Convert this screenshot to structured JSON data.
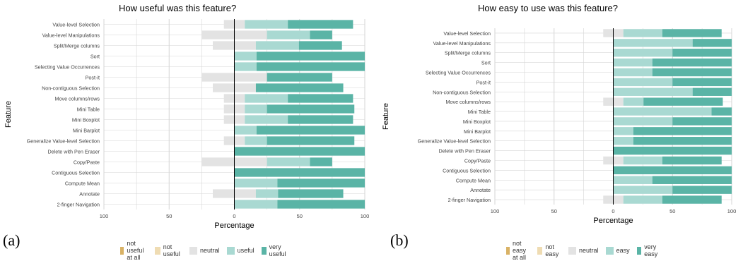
{
  "panels": [
    {
      "id": "a",
      "label": "(a)",
      "legend": [
        "not useful at all",
        "not useful",
        "neutral",
        "useful",
        "very useful"
      ]
    },
    {
      "id": "b",
      "label": "(b)",
      "legend": [
        "not easy at all",
        "not easy",
        "neutral",
        "easy",
        "very easy"
      ]
    }
  ],
  "colors": {
    "level1": "#d9b265",
    "level2": "#efdcb3",
    "neutral": "#e3e3e3",
    "level4": "#a9d9d2",
    "level5": "#5ab4a6",
    "grid": "#d6d6d6",
    "zero": "#000000"
  },
  "chart_data": [
    {
      "type": "bar",
      "subtype": "diverging-stacked",
      "title": "How useful was this feature?",
      "xlabel": "Percentage",
      "ylabel": "Feature",
      "xlim": [
        -100,
        100
      ],
      "xticks": [
        "100",
        "50",
        "0",
        "50",
        "100"
      ],
      "categories": [
        "Value-level Selection",
        "Value-level Manipulations",
        "Split/Merge columns",
        "Sort",
        "Selecting Value Occurrences",
        "Post-it",
        "Non-contiguous Selection",
        "Move columns/rows",
        "Mini Table",
        "Mini Boxplot",
        "Mini Barplot",
        "Generalize Value-level Selection",
        "Delete with Pen Eraser",
        "Copy/Paste",
        "Contiguous Selection",
        "Compute Mean",
        "Annotate",
        "2-finger Navigation"
      ],
      "series": [
        {
          "name": "not useful at all",
          "values": [
            0,
            0,
            0,
            0,
            0,
            0,
            0,
            0,
            0,
            0,
            0,
            0,
            0,
            0,
            0,
            0,
            0,
            0
          ]
        },
        {
          "name": "not useful",
          "values": [
            0,
            0,
            0,
            0,
            0,
            0,
            0,
            0,
            0,
            0,
            0,
            0,
            0,
            0,
            0,
            0,
            0,
            0
          ]
        },
        {
          "name": "neutral",
          "values": [
            16,
            50,
            33,
            0,
            0,
            50,
            33,
            16,
            16,
            16,
            0,
            16,
            0,
            50,
            0,
            0,
            33,
            0
          ]
        },
        {
          "name": "useful",
          "values": [
            33,
            33,
            33,
            17,
            17,
            0,
            0,
            33,
            17,
            33,
            17,
            17,
            0,
            33,
            0,
            33,
            17,
            33
          ]
        },
        {
          "name": "very useful",
          "values": [
            50,
            17,
            33,
            83,
            83,
            50,
            67,
            50,
            67,
            50,
            83,
            67,
            100,
            17,
            100,
            67,
            50,
            67
          ]
        }
      ],
      "legend_position": "bottom"
    },
    {
      "type": "bar",
      "subtype": "diverging-stacked",
      "title": "How easy to use was this feature?",
      "xlabel": "Percentage",
      "ylabel": "Feature",
      "xlim": [
        -100,
        100
      ],
      "xticks": [
        "100",
        "50",
        "0",
        "50",
        "100"
      ],
      "categories": [
        "Value-level Selection",
        "Value-level Manipulations",
        "Split/Merge columns",
        "Sort",
        "Selecting Value Occurrences",
        "Post-it",
        "Non-contiguous Selection",
        "Move columns/rows",
        "Mini Table",
        "Mini Boxplot",
        "Mini Barplot",
        "Generalize Value-level Selection",
        "Delete with Pen Eraser",
        "Copy/Paste",
        "Contiguous Selection",
        "Compute Mean",
        "Annotate",
        "2-finger Navigation"
      ],
      "series": [
        {
          "name": "not easy at all",
          "values": [
            0,
            0,
            0,
            0,
            0,
            0,
            0,
            0,
            0,
            0,
            0,
            0,
            0,
            0,
            0,
            0,
            0,
            0
          ]
        },
        {
          "name": "not easy",
          "values": [
            0,
            0,
            0,
            0,
            0,
            0,
            0,
            0,
            0,
            0,
            0,
            0,
            0,
            0,
            0,
            0,
            0,
            0
          ]
        },
        {
          "name": "neutral",
          "values": [
            17,
            0,
            0,
            0,
            0,
            0,
            0,
            17,
            0,
            0,
            0,
            0,
            0,
            17,
            0,
            0,
            0,
            17
          ]
        },
        {
          "name": "easy",
          "values": [
            33,
            67,
            50,
            33,
            33,
            50,
            67,
            17,
            83,
            50,
            17,
            17,
            0,
            33,
            0,
            33,
            50,
            33
          ]
        },
        {
          "name": "very easy",
          "values": [
            50,
            33,
            50,
            67,
            67,
            50,
            33,
            67,
            17,
            50,
            83,
            83,
            100,
            50,
            100,
            67,
            50,
            50
          ]
        }
      ],
      "legend_position": "bottom"
    }
  ]
}
